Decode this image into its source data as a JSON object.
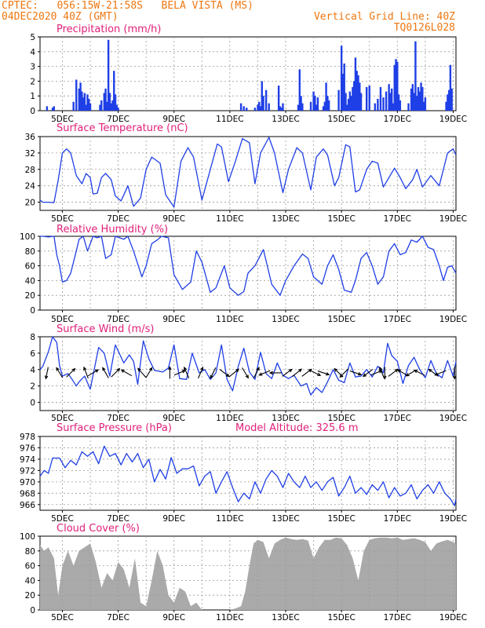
{
  "header": {
    "line1": "CPTEC:   056:15W-21:58S   BELA VISTA (MS)",
    "line2": "04DEC2020 40Z (GMT)",
    "right1": "Vertical Grid Line: 40Z",
    "right2": "TQ0126L028"
  },
  "colors": {
    "header": "#ee7711",
    "title": "#e0207a",
    "line": "#1f3fe6",
    "bar": "#1f3fe6",
    "cloud": "#aaaaaa",
    "grid": "#9a9a9a",
    "arrow": "#000000"
  },
  "chart_data": [
    {
      "type": "bar",
      "title": "Precipitation (mm/h)",
      "xrange": [
        4.2,
        19.1
      ],
      "xticks": [
        5,
        7,
        9,
        11,
        13,
        15,
        17,
        19
      ],
      "xticklabels": [
        "5DEC",
        "7DEC",
        "9DEC",
        "11DEC",
        "13DEC",
        "15DEC",
        "17DEC",
        "19DEC"
      ],
      "ylim": [
        0,
        5
      ],
      "yticks": [
        0,
        1,
        2,
        3,
        4,
        5
      ],
      "grid": true,
      "x": [
        4.45,
        4.65,
        4.7,
        5.4,
        5.5,
        5.6,
        5.65,
        5.7,
        5.75,
        5.8,
        5.85,
        5.9,
        5.95,
        6.0,
        6.35,
        6.4,
        6.5,
        6.55,
        6.6,
        6.65,
        6.7,
        6.75,
        6.8,
        6.85,
        6.9,
        6.95,
        7.0,
        11.4,
        11.5,
        11.6,
        11.9,
        12.0,
        12.05,
        12.1,
        12.15,
        12.2,
        12.3,
        12.4,
        12.75,
        12.8,
        12.85,
        12.9,
        13.45,
        13.5,
        13.55,
        13.6,
        13.9,
        14.0,
        14.05,
        14.1,
        14.15,
        14.35,
        14.4,
        14.45,
        14.5,
        14.55,
        14.9,
        15.0,
        15.05,
        15.1,
        15.15,
        15.2,
        15.25,
        15.3,
        15.35,
        15.4,
        15.45,
        15.5,
        15.55,
        15.6,
        15.65,
        15.7,
        15.9,
        16.0,
        16.2,
        16.3,
        16.4,
        16.5,
        16.6,
        16.7,
        16.75,
        16.8,
        16.85,
        16.9,
        16.95,
        17.0,
        17.05,
        17.1,
        17.4,
        17.5,
        17.55,
        17.6,
        17.65,
        17.7,
        17.75,
        17.8,
        17.85,
        17.9,
        17.95,
        18.0,
        18.75,
        18.8,
        18.85,
        18.9,
        18.95
      ],
      "values": [
        0.3,
        0.2,
        0.3,
        0.6,
        2.1,
        1.5,
        1.9,
        1.3,
        0.9,
        1.2,
        0.4,
        1.1,
        0.8,
        0.5,
        0.4,
        0.7,
        1.2,
        1.5,
        0.6,
        4.8,
        1.2,
        0.5,
        0.7,
        2.7,
        1.1,
        0.4,
        0.2,
        0.5,
        0.3,
        0.2,
        0.2,
        0.4,
        0.6,
        0.3,
        2.0,
        1.0,
        1.4,
        0.5,
        1.7,
        0.3,
        0.2,
        0.5,
        0.4,
        2.8,
        1.0,
        0.5,
        0.6,
        1.3,
        1.0,
        0.4,
        0.9,
        0.3,
        0.6,
        1.9,
        1.0,
        0.7,
        1.4,
        4.4,
        2.5,
        3.2,
        1.2,
        0.4,
        0.8,
        1.3,
        1.0,
        1.6,
        2.0,
        3.6,
        2.7,
        2.4,
        1.9,
        1.2,
        1.6,
        1.7,
        0.5,
        0.8,
        1.6,
        0.9,
        1.3,
        1.8,
        1.2,
        1.5,
        0.5,
        3.1,
        3.5,
        3.3,
        1.1,
        0.7,
        0.5,
        1.5,
        1.8,
        1.2,
        4.7,
        1.0,
        1.6,
        1.3,
        1.9,
        1.6,
        0.6,
        0.9,
        0.6,
        1.1,
        1.4,
        3.1,
        1.5
      ]
    },
    {
      "type": "line",
      "title": "Surface Temperature (nC)",
      "xrange": [
        4.2,
        19.1
      ],
      "xticks": [
        5,
        7,
        9,
        11,
        13,
        15,
        17,
        19
      ],
      "xticklabels": [
        "5DEC",
        "7DEC",
        "9DEC",
        "11DEC",
        "13DEC",
        "15DEC",
        "17DEC",
        "19DEC"
      ],
      "ylim": [
        18,
        36
      ],
      "yticks": [
        20,
        24,
        28,
        32,
        36
      ],
      "grid": true,
      "x": [
        4.2,
        4.3,
        4.5,
        4.7,
        4.85,
        5.0,
        5.15,
        5.3,
        5.5,
        5.7,
        5.85,
        6.0,
        6.1,
        6.25,
        6.4,
        6.55,
        6.75,
        6.9,
        7.1,
        7.35,
        7.55,
        7.8,
        8.0,
        8.2,
        8.5,
        8.7,
        9.0,
        9.25,
        9.5,
        9.7,
        10.0,
        10.3,
        10.55,
        10.7,
        10.95,
        11.2,
        11.45,
        11.7,
        11.9,
        12.1,
        12.4,
        12.6,
        12.9,
        13.1,
        13.4,
        13.6,
        13.9,
        14.1,
        14.35,
        14.5,
        14.75,
        14.9,
        15.15,
        15.3,
        15.5,
        15.65,
        15.9,
        16.1,
        16.3,
        16.5,
        16.7,
        16.9,
        17.1,
        17.3,
        17.55,
        17.7,
        17.9,
        18.2,
        18.5,
        18.8,
        19.0,
        19.1
      ],
      "values": [
        20.5,
        20.0,
        20.0,
        19.9,
        25.3,
        32.0,
        33.0,
        32.0,
        26.5,
        24.5,
        27.0,
        26.0,
        22.0,
        22.2,
        26.0,
        27.0,
        25.5,
        21.5,
        20.3,
        24.0,
        19.0,
        21.0,
        28.0,
        31.0,
        29.5,
        21.8,
        18.8,
        30.0,
        33.3,
        31.0,
        20.5,
        28.0,
        34.2,
        33.5,
        25.0,
        30.0,
        35.5,
        34.5,
        24.5,
        32.0,
        35.8,
        32.0,
        22.3,
        28.0,
        33.3,
        32.0,
        23.0,
        31.0,
        33.0,
        31.5,
        24.0,
        26.0,
        34.0,
        33.5,
        22.5,
        23.0,
        28.0,
        30.0,
        29.5,
        23.7,
        26.0,
        28.3,
        26.0,
        23.3,
        25.5,
        28.0,
        23.7,
        26.5,
        24.0,
        32.0,
        33.0,
        31.5
      ]
    },
    {
      "type": "line",
      "title": "Relative Humidity (%)",
      "xrange": [
        4.2,
        19.1
      ],
      "xticks": [
        5,
        7,
        9,
        11,
        13,
        15,
        17,
        19
      ],
      "xticklabels": [
        "5DEC",
        "7DEC",
        "9DEC",
        "11DEC",
        "13DEC",
        "15DEC",
        "17DEC",
        "19DEC"
      ],
      "ylim": [
        0,
        100
      ],
      "yticks": [
        0,
        20,
        40,
        60,
        80,
        100
      ],
      "grid": true,
      "x": [
        4.2,
        4.3,
        4.5,
        4.7,
        4.8,
        4.9,
        5.0,
        5.15,
        5.3,
        5.5,
        5.6,
        5.75,
        5.9,
        6.1,
        6.25,
        6.4,
        6.55,
        6.75,
        6.9,
        7.2,
        7.35,
        7.55,
        7.85,
        8.0,
        8.2,
        8.4,
        8.55,
        8.8,
        9.0,
        9.3,
        9.6,
        9.8,
        10.0,
        10.3,
        10.5,
        10.8,
        11.0,
        11.3,
        11.5,
        11.65,
        11.9,
        12.2,
        12.5,
        12.8,
        13.0,
        13.3,
        13.6,
        13.8,
        14.0,
        14.3,
        14.5,
        14.7,
        14.9,
        15.1,
        15.35,
        15.5,
        15.7,
        15.9,
        16.1,
        16.3,
        16.5,
        16.7,
        16.9,
        17.1,
        17.3,
        17.5,
        17.7,
        17.9,
        18.1,
        18.3,
        18.5,
        18.65,
        18.8,
        18.95,
        19.1
      ],
      "values": [
        100.0,
        100.0,
        99.0,
        100.0,
        75.0,
        60.0,
        38.0,
        40.0,
        50.0,
        80.0,
        96.0,
        100.0,
        80.0,
        100.0,
        98.0,
        100.0,
        70.0,
        75.0,
        100.0,
        96.0,
        100.0,
        80.0,
        45.0,
        60.0,
        90.0,
        95.0,
        100.0,
        98.0,
        48.0,
        28.0,
        38.0,
        80.0,
        65.0,
        24.0,
        30.0,
        60.0,
        30.0,
        20.0,
        25.0,
        50.0,
        60.0,
        82.0,
        35.0,
        20.0,
        40.0,
        60.0,
        76.0,
        70.0,
        45.0,
        35.0,
        60.0,
        75.0,
        55.0,
        27.0,
        24.0,
        40.0,
        70.0,
        78.0,
        60.0,
        35.0,
        45.0,
        80.0,
        90.0,
        75.0,
        78.0,
        95.0,
        92.0,
        100.0,
        85.0,
        82.0,
        60.0,
        40.0,
        58.0,
        60.0,
        50.0
      ]
    },
    {
      "type": "line",
      "title": "Surface Wind (m/s)",
      "xrange": [
        4.2,
        19.1
      ],
      "xticks": [
        5,
        7,
        9,
        11,
        13,
        15,
        17,
        19
      ],
      "xticklabels": [
        "5DEC",
        "7DEC",
        "9DEC",
        "11DEC",
        "13DEC",
        "15DEC",
        "17DEC",
        "19DEC"
      ],
      "ylim": [
        -1,
        8
      ],
      "yticks": [
        0,
        2,
        4,
        6,
        8
      ],
      "grid": true,
      "x": [
        4.2,
        4.3,
        4.5,
        4.65,
        4.8,
        4.9,
        5.0,
        5.2,
        5.35,
        5.5,
        5.6,
        5.8,
        6.0,
        6.3,
        6.5,
        6.7,
        6.9,
        7.2,
        7.4,
        7.55,
        7.7,
        7.9,
        8.1,
        8.3,
        8.6,
        8.8,
        9.0,
        9.2,
        9.45,
        9.65,
        9.9,
        10.1,
        10.3,
        10.5,
        10.7,
        10.9,
        11.1,
        11.3,
        11.5,
        11.7,
        11.9,
        12.1,
        12.3,
        12.5,
        12.7,
        12.9,
        13.1,
        13.3,
        13.55,
        13.75,
        13.9,
        14.1,
        14.3,
        14.5,
        14.7,
        14.9,
        15.1,
        15.3,
        15.5,
        15.7,
        15.9,
        16.1,
        16.3,
        16.5,
        16.65,
        16.8,
        17.0,
        17.2,
        17.4,
        17.6,
        17.8,
        18.0,
        18.2,
        18.4,
        18.6,
        18.8,
        19.0,
        19.1
      ],
      "values": [
        4.0,
        4.4,
        6.2,
        8.0,
        7.3,
        4.5,
        3.2,
        3.5,
        2.8,
        2.0,
        2.5,
        3.2,
        1.6,
        6.7,
        6.0,
        3.2,
        7.0,
        4.8,
        5.8,
        5.0,
        2.2,
        7.5,
        5.3,
        3.9,
        3.7,
        4.2,
        7.0,
        2.9,
        2.8,
        6.0,
        3.6,
        4.0,
        2.8,
        3.6,
        7.0,
        2.8,
        1.4,
        4.4,
        6.6,
        3.7,
        2.8,
        6.1,
        3.5,
        2.9,
        4.8,
        3.3,
        2.9,
        3.3,
        2.0,
        2.3,
        0.9,
        1.8,
        1.2,
        2.5,
        4.0,
        2.7,
        2.4,
        4.8,
        3.1,
        3.2,
        4.0,
        3.1,
        4.4,
        3.6,
        7.2,
        5.7,
        5.0,
        2.3,
        4.5,
        5.5,
        4.0,
        3.0,
        5.1,
        3.5,
        3.0,
        5.1,
        3.2,
        5.0
      ],
      "arrows": {
        "x": [
          4.45,
          4.9,
          5.3,
          5.85,
          6.1,
          6.55,
          6.9,
          7.3,
          7.85,
          8.1,
          8.85,
          9.2,
          9.45,
          9.95,
          10.4,
          10.8,
          11.15,
          11.55,
          11.95,
          12.25,
          12.65,
          13.05,
          13.4,
          13.75,
          14.05,
          14.35,
          14.9,
          15.1,
          15.5,
          15.95,
          16.25,
          16.45,
          16.55,
          16.85,
          17.2,
          17.5,
          17.8,
          18.3,
          18.55,
          19.05
        ],
        "u": [
          -0.2,
          -0.3,
          0.4,
          -0.3,
          0.5,
          -0.4,
          0.5,
          -0.7,
          -0.7,
          0.3,
          0.0,
          0.7,
          -0.3,
          0.3,
          -0.4,
          0.4,
          0.5,
          0.3,
          0.2,
          -0.5,
          -0.5,
          0.4,
          0.5,
          0.4,
          0.4,
          0.6,
          -0.2,
          -0.3,
          0.6,
          -0.4,
          0.5,
          -0.2,
          0.0,
          0.4,
          -0.5,
          -0.5,
          -0.6,
          -0.4,
          -0.5,
          0.0
        ],
        "v": [
          -1.0,
          0.5,
          0.4,
          0.8,
          0.3,
          0.7,
          0.5,
          0.4,
          0.8,
          0.5,
          0.6,
          0.3,
          0.7,
          0.7,
          -0.8,
          -0.3,
          0.4,
          -0.5,
          0.4,
          -0.2,
          0.0,
          0.3,
          0.4,
          0.3,
          -0.2,
          -0.2,
          0.2,
          -0.3,
          -0.2,
          -0.3,
          0.2,
          0.5,
          -1.0,
          0.3,
          0.3,
          -0.3,
          0.3,
          0.3,
          -0.2,
          -0.2
        ]
      }
    },
    {
      "type": "line",
      "title": "Surface Pressure (hPa)",
      "annotation": "Model Altitude: 325.6 m",
      "xrange": [
        4.2,
        19.1
      ],
      "xticks": [
        5,
        7,
        9,
        11,
        13,
        15,
        17,
        19
      ],
      "xticklabels": [
        "5DEC",
        "7DEC",
        "9DEC",
        "11DEC",
        "13DEC",
        "15DEC",
        "17DEC",
        "19DEC"
      ],
      "ylim": [
        965,
        978
      ],
      "yticks": [
        966,
        968,
        970,
        972,
        974,
        976,
        978
      ],
      "grid": true,
      "x": [
        4.2,
        4.35,
        4.5,
        4.65,
        4.9,
        5.1,
        5.3,
        5.5,
        5.7,
        5.9,
        6.1,
        6.3,
        6.5,
        6.7,
        6.9,
        7.1,
        7.3,
        7.5,
        7.7,
        7.9,
        8.1,
        8.3,
        8.5,
        8.7,
        8.9,
        9.1,
        9.3,
        9.5,
        9.7,
        9.9,
        10.1,
        10.3,
        10.5,
        10.7,
        10.9,
        11.1,
        11.3,
        11.5,
        11.7,
        11.9,
        12.1,
        12.3,
        12.5,
        12.7,
        12.9,
        13.1,
        13.3,
        13.5,
        13.7,
        13.9,
        14.1,
        14.3,
        14.5,
        14.7,
        14.9,
        15.1,
        15.3,
        15.5,
        15.7,
        15.9,
        16.1,
        16.3,
        16.5,
        16.7,
        16.9,
        17.1,
        17.3,
        17.5,
        17.7,
        17.9,
        18.1,
        18.3,
        18.5,
        18.7,
        18.9,
        19.05,
        19.1
      ],
      "values": [
        971.0,
        972.0,
        971.5,
        974.2,
        974.2,
        972.5,
        973.8,
        973.0,
        975.3,
        974.5,
        975.3,
        973.2,
        976.3,
        974.5,
        975.0,
        973.0,
        975.0,
        973.5,
        975.0,
        972.5,
        974.0,
        970.0,
        972.2,
        970.5,
        974.3,
        971.5,
        972.3,
        972.3,
        972.8,
        969.3,
        971.0,
        971.8,
        968.0,
        970.0,
        971.8,
        969.0,
        966.5,
        968.0,
        967.0,
        970.0,
        968.0,
        970.5,
        972.0,
        971.0,
        969.0,
        971.5,
        970.0,
        969.0,
        971.0,
        969.0,
        970.0,
        968.5,
        970.0,
        970.8,
        967.5,
        969.0,
        971.0,
        968.0,
        969.0,
        967.8,
        969.5,
        968.5,
        970.0,
        967.2,
        969.0,
        967.5,
        968.0,
        969.5,
        967.0,
        968.5,
        969.5,
        968.0,
        970.0,
        968.0,
        967.0,
        965.8,
        967.0
      ]
    },
    {
      "type": "area",
      "title": "Cloud Cover (%)",
      "xrange": [
        4.2,
        19.1
      ],
      "xticks": [
        5,
        7,
        9,
        11,
        13,
        15,
        17,
        19
      ],
      "xticklabels": [
        "5DEC",
        "7DEC",
        "9DEC",
        "11DEC",
        "13DEC",
        "15DEC",
        "17DEC",
        "19DEC"
      ],
      "ylim": [
        0,
        100
      ],
      "yticks": [
        0,
        20,
        40,
        60,
        80,
        100
      ],
      "grid": true,
      "x": [
        4.2,
        4.35,
        4.5,
        4.7,
        4.85,
        5.0,
        5.2,
        5.4,
        5.6,
        5.8,
        6.0,
        6.2,
        6.4,
        6.6,
        6.8,
        7.0,
        7.2,
        7.4,
        7.6,
        7.8,
        8.0,
        8.2,
        8.4,
        8.6,
        8.8,
        9.0,
        9.2,
        9.4,
        9.6,
        9.8,
        10.0,
        10.2,
        10.4,
        10.6,
        10.8,
        11.0,
        11.2,
        11.4,
        11.55,
        11.7,
        11.85,
        12.0,
        12.2,
        12.4,
        12.6,
        12.8,
        13.0,
        13.2,
        13.4,
        13.6,
        13.8,
        14.0,
        14.2,
        14.4,
        14.6,
        14.8,
        15.0,
        15.2,
        15.4,
        15.6,
        15.8,
        16.0,
        16.2,
        16.4,
        16.6,
        16.8,
        17.0,
        17.2,
        17.4,
        17.6,
        17.8,
        18.0,
        18.2,
        18.4,
        18.6,
        18.8,
        19.0,
        19.1
      ],
      "values": [
        88.0,
        80.0,
        85.0,
        70.0,
        20.0,
        60.0,
        80.0,
        60.0,
        80.0,
        85.0,
        90.0,
        65.0,
        30.0,
        50.0,
        40.0,
        65.0,
        55.0,
        30.0,
        70.0,
        10.0,
        5.0,
        40.0,
        80.0,
        60.0,
        20.0,
        10.0,
        30.0,
        25.0,
        5.0,
        10.0,
        0.0,
        0.0,
        0.0,
        0.0,
        0.0,
        0.0,
        2.0,
        5.0,
        25.0,
        60.0,
        90.0,
        95.0,
        92.0,
        70.0,
        90.0,
        95.0,
        98.0,
        96.0,
        95.0,
        96.0,
        94.0,
        70.0,
        85.0,
        95.0,
        95.0,
        98.0,
        97.0,
        88.0,
        70.0,
        40.0,
        80.0,
        95.0,
        97.0,
        98.0,
        98.0,
        97.0,
        98.0,
        95.0,
        96.0,
        97.0,
        95.0,
        92.0,
        80.0,
        90.0,
        93.0,
        95.0,
        92.0,
        90.0
      ]
    }
  ]
}
